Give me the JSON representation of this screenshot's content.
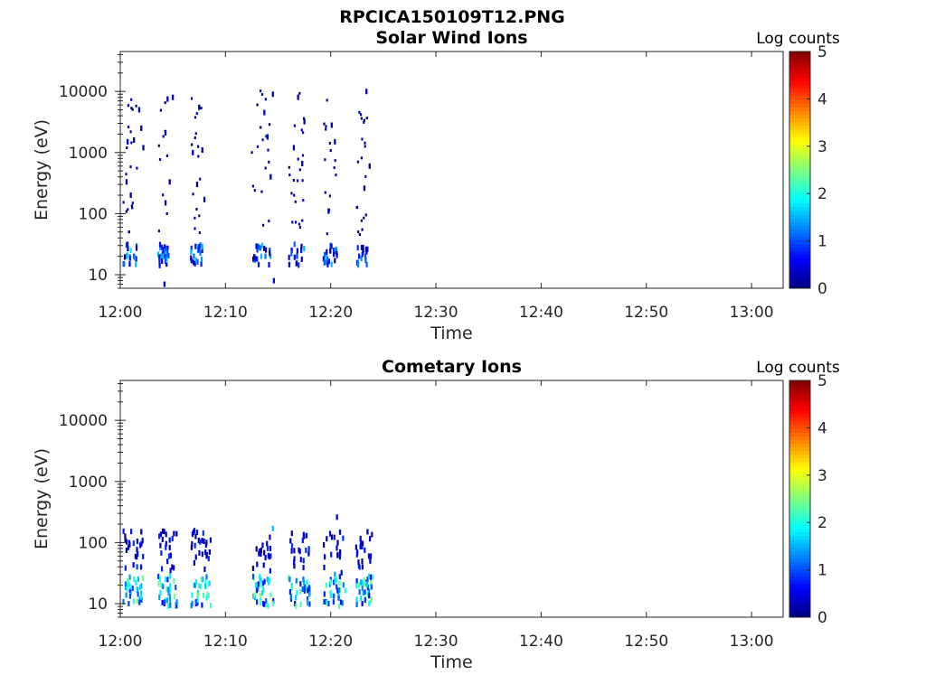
{
  "chart_data": {
    "type": "heatmap",
    "title": "RPCICA150109T12.PNG",
    "panels": [
      {
        "title": "Solar Wind Ions",
        "xlabel": "Time",
        "ylabel": "Energy (eV)",
        "yscale": "log",
        "ylim": [
          6,
          45000
        ],
        "xlim": [
          "12:00",
          "13:03"
        ],
        "xticks": [
          "12:00",
          "12:10",
          "12:20",
          "12:30",
          "12:40",
          "12:50",
          "13:00"
        ],
        "yticks": [
          "10",
          "100",
          "1000",
          "10000"
        ],
        "colorbar": {
          "label": "Log counts",
          "range": [
            0,
            5
          ],
          "ticks": [
            "0",
            "1",
            "2",
            "3",
            "4",
            "5"
          ]
        },
        "scan_windows_min": [
          [
            0.3,
            1.6
          ],
          [
            3.6,
            4.6
          ],
          [
            6.7,
            7.8
          ],
          [
            12.5,
            14.4
          ],
          [
            16.0,
            17.6
          ],
          [
            19.3,
            20.6
          ],
          [
            22.4,
            23.5
          ]
        ],
        "points": [
          [
            0.6,
            20,
            1.4
          ],
          [
            1.0,
            25,
            1.8
          ],
          [
            1.3,
            20,
            1.0
          ],
          [
            0.9,
            15,
            0.6
          ],
          [
            0.6,
            330,
            0.3
          ],
          [
            1.0,
            200,
            0.2
          ],
          [
            1.3,
            1600,
            0.2
          ],
          [
            1.8,
            5000,
            0.3
          ],
          [
            2.0,
            2500,
            0.2
          ],
          [
            0.7,
            1500,
            0.3
          ],
          [
            2.2,
            1200,
            0.2
          ],
          [
            3.9,
            20,
            1.6
          ],
          [
            4.1,
            25,
            1.0
          ],
          [
            4.4,
            15,
            0.6
          ],
          [
            4.2,
            7,
            0.4
          ],
          [
            4.5,
            7500,
            0.3
          ],
          [
            5.0,
            8000,
            0.3
          ],
          [
            4.3,
            2100,
            0.2
          ],
          [
            4.7,
            330,
            0.2
          ],
          [
            4.3,
            150,
            0.2
          ],
          [
            7.0,
            20,
            1.2
          ],
          [
            7.4,
            25,
            1.5
          ],
          [
            7.7,
            15,
            0.8
          ],
          [
            7.5,
            5500,
            0.3
          ],
          [
            7.8,
            1100,
            0.2
          ],
          [
            6.9,
            1000,
            0.3
          ],
          [
            8.0,
            170,
            0.2
          ],
          [
            7.3,
            300,
            0.2
          ],
          [
            13.0,
            18,
            0.8
          ],
          [
            13.5,
            30,
            1.6
          ],
          [
            13.8,
            20,
            1.2
          ],
          [
            14.2,
            25,
            1.0
          ],
          [
            14.6,
            8,
            0.6
          ],
          [
            13.7,
            4500,
            0.3
          ],
          [
            14.5,
            9000,
            0.3
          ],
          [
            14.0,
            1800,
            0.2
          ],
          [
            14.3,
            400,
            0.2
          ],
          [
            16.3,
            25,
            0.6
          ],
          [
            16.8,
            20,
            1.0
          ],
          [
            17.2,
            25,
            0.8
          ],
          [
            16.9,
            8000,
            0.3
          ],
          [
            17.5,
            3200,
            0.3
          ],
          [
            16.5,
            1200,
            0.2
          ],
          [
            17.3,
            660,
            0.2
          ],
          [
            19.6,
            20,
            1.5
          ],
          [
            20.0,
            30,
            1.0
          ],
          [
            20.3,
            25,
            0.8
          ],
          [
            20.1,
            2800,
            0.3
          ],
          [
            20.4,
            1500,
            0.2
          ],
          [
            19.8,
            110,
            0.2
          ],
          [
            22.7,
            20,
            0.8
          ],
          [
            23.1,
            25,
            1.1
          ],
          [
            23.3,
            20,
            1.0
          ],
          [
            23.4,
            10000,
            0.3
          ],
          [
            23.7,
            600,
            0.2
          ],
          [
            23.2,
            260,
            0.2
          ]
        ]
      },
      {
        "title": "Cometary Ions",
        "xlabel": "Time",
        "ylabel": "Energy (eV)",
        "yscale": "log",
        "ylim": [
          6,
          45000
        ],
        "xlim": [
          "12:00",
          "13:03"
        ],
        "xticks": [
          "12:00",
          "12:10",
          "12:20",
          "12:30",
          "12:40",
          "12:50",
          "13:00"
        ],
        "yticks": [
          "10",
          "100",
          "1000",
          "10000"
        ],
        "colorbar": {
          "label": "Log counts",
          "range": [
            0,
            5
          ],
          "ticks": [
            "0",
            "1",
            "2",
            "3",
            "4",
            "5"
          ]
        },
        "scan_windows_min": [
          [
            0.3,
            2.2
          ],
          [
            3.6,
            5.4
          ],
          [
            6.7,
            8.6
          ],
          [
            12.5,
            14.6
          ],
          [
            16.0,
            18.0
          ],
          [
            19.3,
            21.4
          ],
          [
            22.4,
            24.0
          ]
        ],
        "points": [
          [
            0.6,
            20,
            2.4
          ],
          [
            1.0,
            15,
            1.8
          ],
          [
            1.3,
            25,
            2.1
          ],
          [
            1.6,
            40,
            1.0
          ],
          [
            1.9,
            90,
            0.5
          ],
          [
            2.0,
            150,
            0.3
          ],
          [
            0.8,
            10,
            1.0
          ],
          [
            3.9,
            20,
            2.2
          ],
          [
            4.3,
            25,
            1.9
          ],
          [
            4.6,
            15,
            1.4
          ],
          [
            4.7,
            60,
            0.6
          ],
          [
            5.1,
            140,
            0.3
          ],
          [
            4.2,
            10,
            0.8
          ],
          [
            7.0,
            20,
            2.3
          ],
          [
            7.4,
            15,
            1.6
          ],
          [
            7.8,
            25,
            1.2
          ],
          [
            8.2,
            60,
            0.6
          ],
          [
            8.5,
            70,
            0.4
          ],
          [
            7.2,
            10,
            0.8
          ],
          [
            13.0,
            20,
            2.3
          ],
          [
            13.5,
            15,
            1.7
          ],
          [
            14.0,
            25,
            1.5
          ],
          [
            14.3,
            60,
            0.8
          ],
          [
            14.5,
            170,
            1.6
          ],
          [
            13.6,
            10,
            0.7
          ],
          [
            16.3,
            20,
            2.5
          ],
          [
            16.8,
            15,
            1.9
          ],
          [
            17.4,
            25,
            1.2
          ],
          [
            17.7,
            130,
            0.4
          ],
          [
            16.6,
            10,
            0.8
          ],
          [
            19.6,
            20,
            2.2
          ],
          [
            20.0,
            15,
            2.0
          ],
          [
            20.4,
            30,
            1.4
          ],
          [
            20.6,
            260,
            0.5
          ],
          [
            20.9,
            70,
            0.3
          ],
          [
            19.8,
            10,
            0.9
          ],
          [
            22.7,
            20,
            2.4
          ],
          [
            23.1,
            15,
            1.5
          ],
          [
            23.5,
            25,
            1.0
          ],
          [
            23.8,
            60,
            0.4
          ],
          [
            23.5,
            150,
            0.3
          ],
          [
            23.0,
            10,
            0.7
          ]
        ]
      }
    ]
  }
}
